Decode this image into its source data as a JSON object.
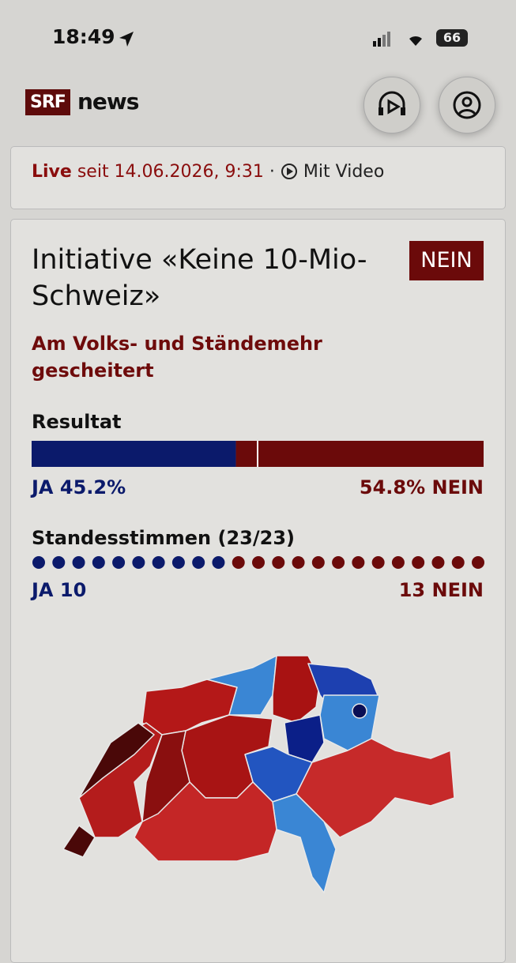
{
  "status_bar": {
    "time": "18:49",
    "battery": "66"
  },
  "header": {
    "logo_mark": "SRF",
    "logo_text": "news"
  },
  "live": {
    "label": "Live",
    "since": "seit 14.06.2026, 9:31",
    "separator": "·",
    "video": "Mit Video"
  },
  "vote": {
    "title": "Initiative «Keine 10-Mio-Schweiz»",
    "badge": "NEIN",
    "subtitle": "Am Volks- und Ständemehr gescheitert",
    "result": {
      "heading": "Resultat",
      "ja": {
        "label": "JA",
        "percent": 45.2,
        "unit": "%"
      },
      "nein": {
        "label": "NEIN",
        "percent": 54.8,
        "unit": "%"
      }
    },
    "cantons": {
      "heading": "Standesstimmen (23/23)",
      "ja": {
        "label": "JA",
        "count": 10
      },
      "nein": {
        "label": "NEIN",
        "count": 13
      }
    }
  }
}
